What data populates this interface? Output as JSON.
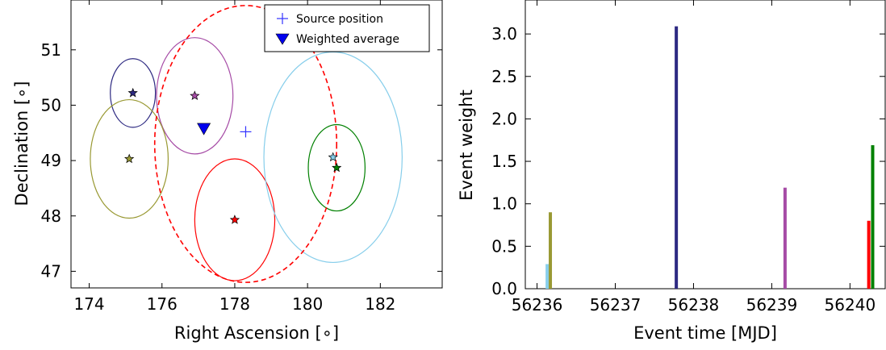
{
  "chart_data": [
    {
      "type": "scatter",
      "xlabel": "Right Ascension [$^\\circ$]",
      "ylabel": "Declination [$^\\circ$]",
      "x_tick_labels": [
        "174",
        "176",
        "178",
        "180",
        "182"
      ],
      "y_tick_labels": [
        "47",
        "48",
        "49",
        "50",
        "51"
      ],
      "xlim": [
        173.5,
        183.7
      ],
      "ylim": [
        46.7,
        51.9
      ],
      "legend": {
        "location": "upper-right",
        "entries": [
          {
            "label": "Source position",
            "marker": "plus",
            "color": "#3333ff"
          },
          {
            "label": "Weighted average",
            "marker": "triangle-down",
            "color": "#0000ee"
          }
        ]
      },
      "source_position": {
        "x": 178.3,
        "y": 49.52
      },
      "weighted_average": {
        "x": 177.15,
        "y": 49.57
      },
      "region_circle": {
        "x": 178.3,
        "y": 49.3,
        "r": 2.5,
        "color": "#ff0000",
        "dashed": true
      },
      "events": [
        {
          "x": 175.2,
          "y": 50.22,
          "r": 0.62,
          "color": "#2e2a82"
        },
        {
          "x": 176.9,
          "y": 50.17,
          "r": 1.05,
          "color": "#a64ca6"
        },
        {
          "x": 175.1,
          "y": 49.03,
          "r": 1.07,
          "color": "#999933"
        },
        {
          "x": 178.0,
          "y": 47.93,
          "r": 1.1,
          "color": "#ff0000"
        },
        {
          "x": 180.7,
          "y": 49.06,
          "r": 1.9,
          "color": "#87ceeb"
        },
        {
          "x": 180.8,
          "y": 48.87,
          "r": 0.78,
          "color": "#008000"
        }
      ]
    },
    {
      "type": "bar",
      "xlabel": "Event time [MJD]",
      "ylabel": "Event weight",
      "x_tick_labels": [
        "56236",
        "56237",
        "56238",
        "56239",
        "56240"
      ],
      "y_tick_labels": [
        "0.0",
        "0.5",
        "1.0",
        "1.5",
        "2.0",
        "2.5",
        "3.0"
      ],
      "xlim": [
        56235.85,
        56240.45
      ],
      "ylim": [
        0,
        3.4
      ],
      "events": [
        {
          "x": 56236.13,
          "y": 0.29,
          "color": "#87ceeb"
        },
        {
          "x": 56236.17,
          "y": 0.9,
          "color": "#999933"
        },
        {
          "x": 56237.78,
          "y": 3.09,
          "color": "#2e2a82"
        },
        {
          "x": 56239.17,
          "y": 1.19,
          "color": "#a64ca6"
        },
        {
          "x": 56240.24,
          "y": 0.8,
          "color": "#ff0000"
        },
        {
          "x": 56240.29,
          "y": 1.69,
          "color": "#008000"
        }
      ]
    }
  ]
}
